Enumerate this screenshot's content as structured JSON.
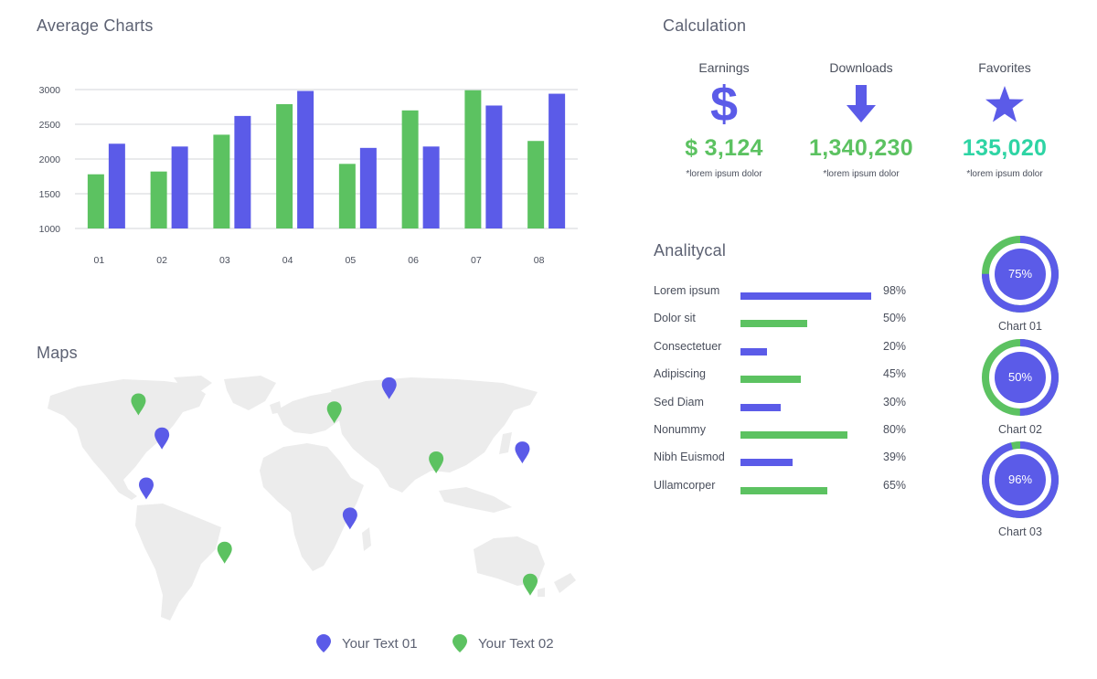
{
  "average_charts": {
    "title": "Average Charts"
  },
  "calculation": {
    "title": "Calculation",
    "stats": [
      {
        "label": "Earnings",
        "icon": "dollar-icon",
        "icon_glyph": "$",
        "value": "$ 3,124",
        "note": "*lorem ipsum dolor",
        "color": "#5cc261"
      },
      {
        "label": "Downloads",
        "icon": "arrow-down-icon",
        "value": "1,340,230",
        "note": "*lorem ipsum dolor",
        "color": "#5cc261"
      },
      {
        "label": "Favorites",
        "icon": "star-icon",
        "value": "135,020",
        "note": "*lorem ipsum dolor",
        "color": "#2ed4a4"
      }
    ]
  },
  "analytical": {
    "title": "Analitycal",
    "items": [
      {
        "label": "Lorem ipsum",
        "pct": "98%",
        "value": 98,
        "color": "#5b5be8"
      },
      {
        "label": "Dolor sit",
        "pct": "50%",
        "value": 50,
        "color": "#5cc261"
      },
      {
        "label": "Consectetuer",
        "pct": "20%",
        "value": 20,
        "color": "#5b5be8"
      },
      {
        "label": "Adipiscing",
        "pct": "45%",
        "value": 45,
        "color": "#5cc261"
      },
      {
        "label": "Sed Diam",
        "pct": "30%",
        "value": 30,
        "color": "#5b5be8"
      },
      {
        "label": "Nonummy",
        "pct": "80%",
        "value": 80,
        "color": "#5cc261"
      },
      {
        "label": "Nibh Euismod",
        "pct": "39%",
        "value": 39,
        "color": "#5b5be8"
      },
      {
        "label": "Ullamcorper",
        "pct": "65%",
        "value": 65,
        "color": "#5cc261"
      }
    ]
  },
  "donuts": [
    {
      "label": "Chart 01",
      "pct": "75%",
      "value": 75
    },
    {
      "label": "Chart 02",
      "pct": "50%",
      "value": 50
    },
    {
      "label": "Chart 03",
      "pct": "96%",
      "value": 96
    }
  ],
  "maps": {
    "title": "Maps",
    "legend": [
      {
        "label": "Your Text 01",
        "color": "#5b5be8"
      },
      {
        "label": "Your Text 02",
        "color": "#5cc261"
      }
    ],
    "pins": [
      {
        "lon": -105,
        "lat": 62,
        "series": 1
      },
      {
        "lon": -90,
        "lat": 45,
        "series": 0
      },
      {
        "lon": -100,
        "lat": 20,
        "series": 0
      },
      {
        "lon": -50,
        "lat": -12,
        "series": 1
      },
      {
        "lon": 20,
        "lat": 58,
        "series": 1
      },
      {
        "lon": 55,
        "lat": 70,
        "series": 0
      },
      {
        "lon": 85,
        "lat": 33,
        "series": 1
      },
      {
        "lon": 140,
        "lat": 38,
        "series": 0
      },
      {
        "lon": 30,
        "lat": 5,
        "series": 0
      },
      {
        "lon": 145,
        "lat": -28,
        "series": 1
      }
    ]
  },
  "colors": {
    "blue": "#5b5be8",
    "green": "#5cc261",
    "teal": "#2ed4a4",
    "land": "#ececec"
  },
  "chart_data": [
    {
      "type": "bar",
      "title": "Average Charts",
      "categories": [
        "01",
        "02",
        "03",
        "04",
        "05",
        "06",
        "07",
        "08"
      ],
      "series": [
        {
          "values": [
            1780,
            1820,
            2350,
            2790,
            1930,
            2700,
            2990,
            2260
          ],
          "color": "#5cc261"
        },
        {
          "values": [
            2220,
            2180,
            2620,
            2980,
            2160,
            2180,
            2770,
            2940
          ],
          "color": "#5b5be8"
        }
      ],
      "ylim": [
        1000,
        3000
      ],
      "yticks": [
        "1000",
        "1500",
        "2000",
        "2500",
        "3000"
      ],
      "grid": true
    },
    {
      "type": "bar",
      "orientation": "horizontal",
      "title": "Analitycal",
      "categories": [
        "Lorem ipsum",
        "Dolor sit",
        "Consectetuer",
        "Adipiscing",
        "Sed Diam",
        "Nonummy",
        "Nibh Euismod",
        "Ullamcorper"
      ],
      "values": [
        98,
        50,
        20,
        45,
        30,
        80,
        39,
        65
      ],
      "xlim": [
        0,
        100
      ]
    },
    {
      "type": "pie",
      "subtype": "donut",
      "categories": [
        "Chart 01",
        "Chart 02",
        "Chart 03"
      ],
      "values": [
        75,
        50,
        96
      ]
    }
  ]
}
